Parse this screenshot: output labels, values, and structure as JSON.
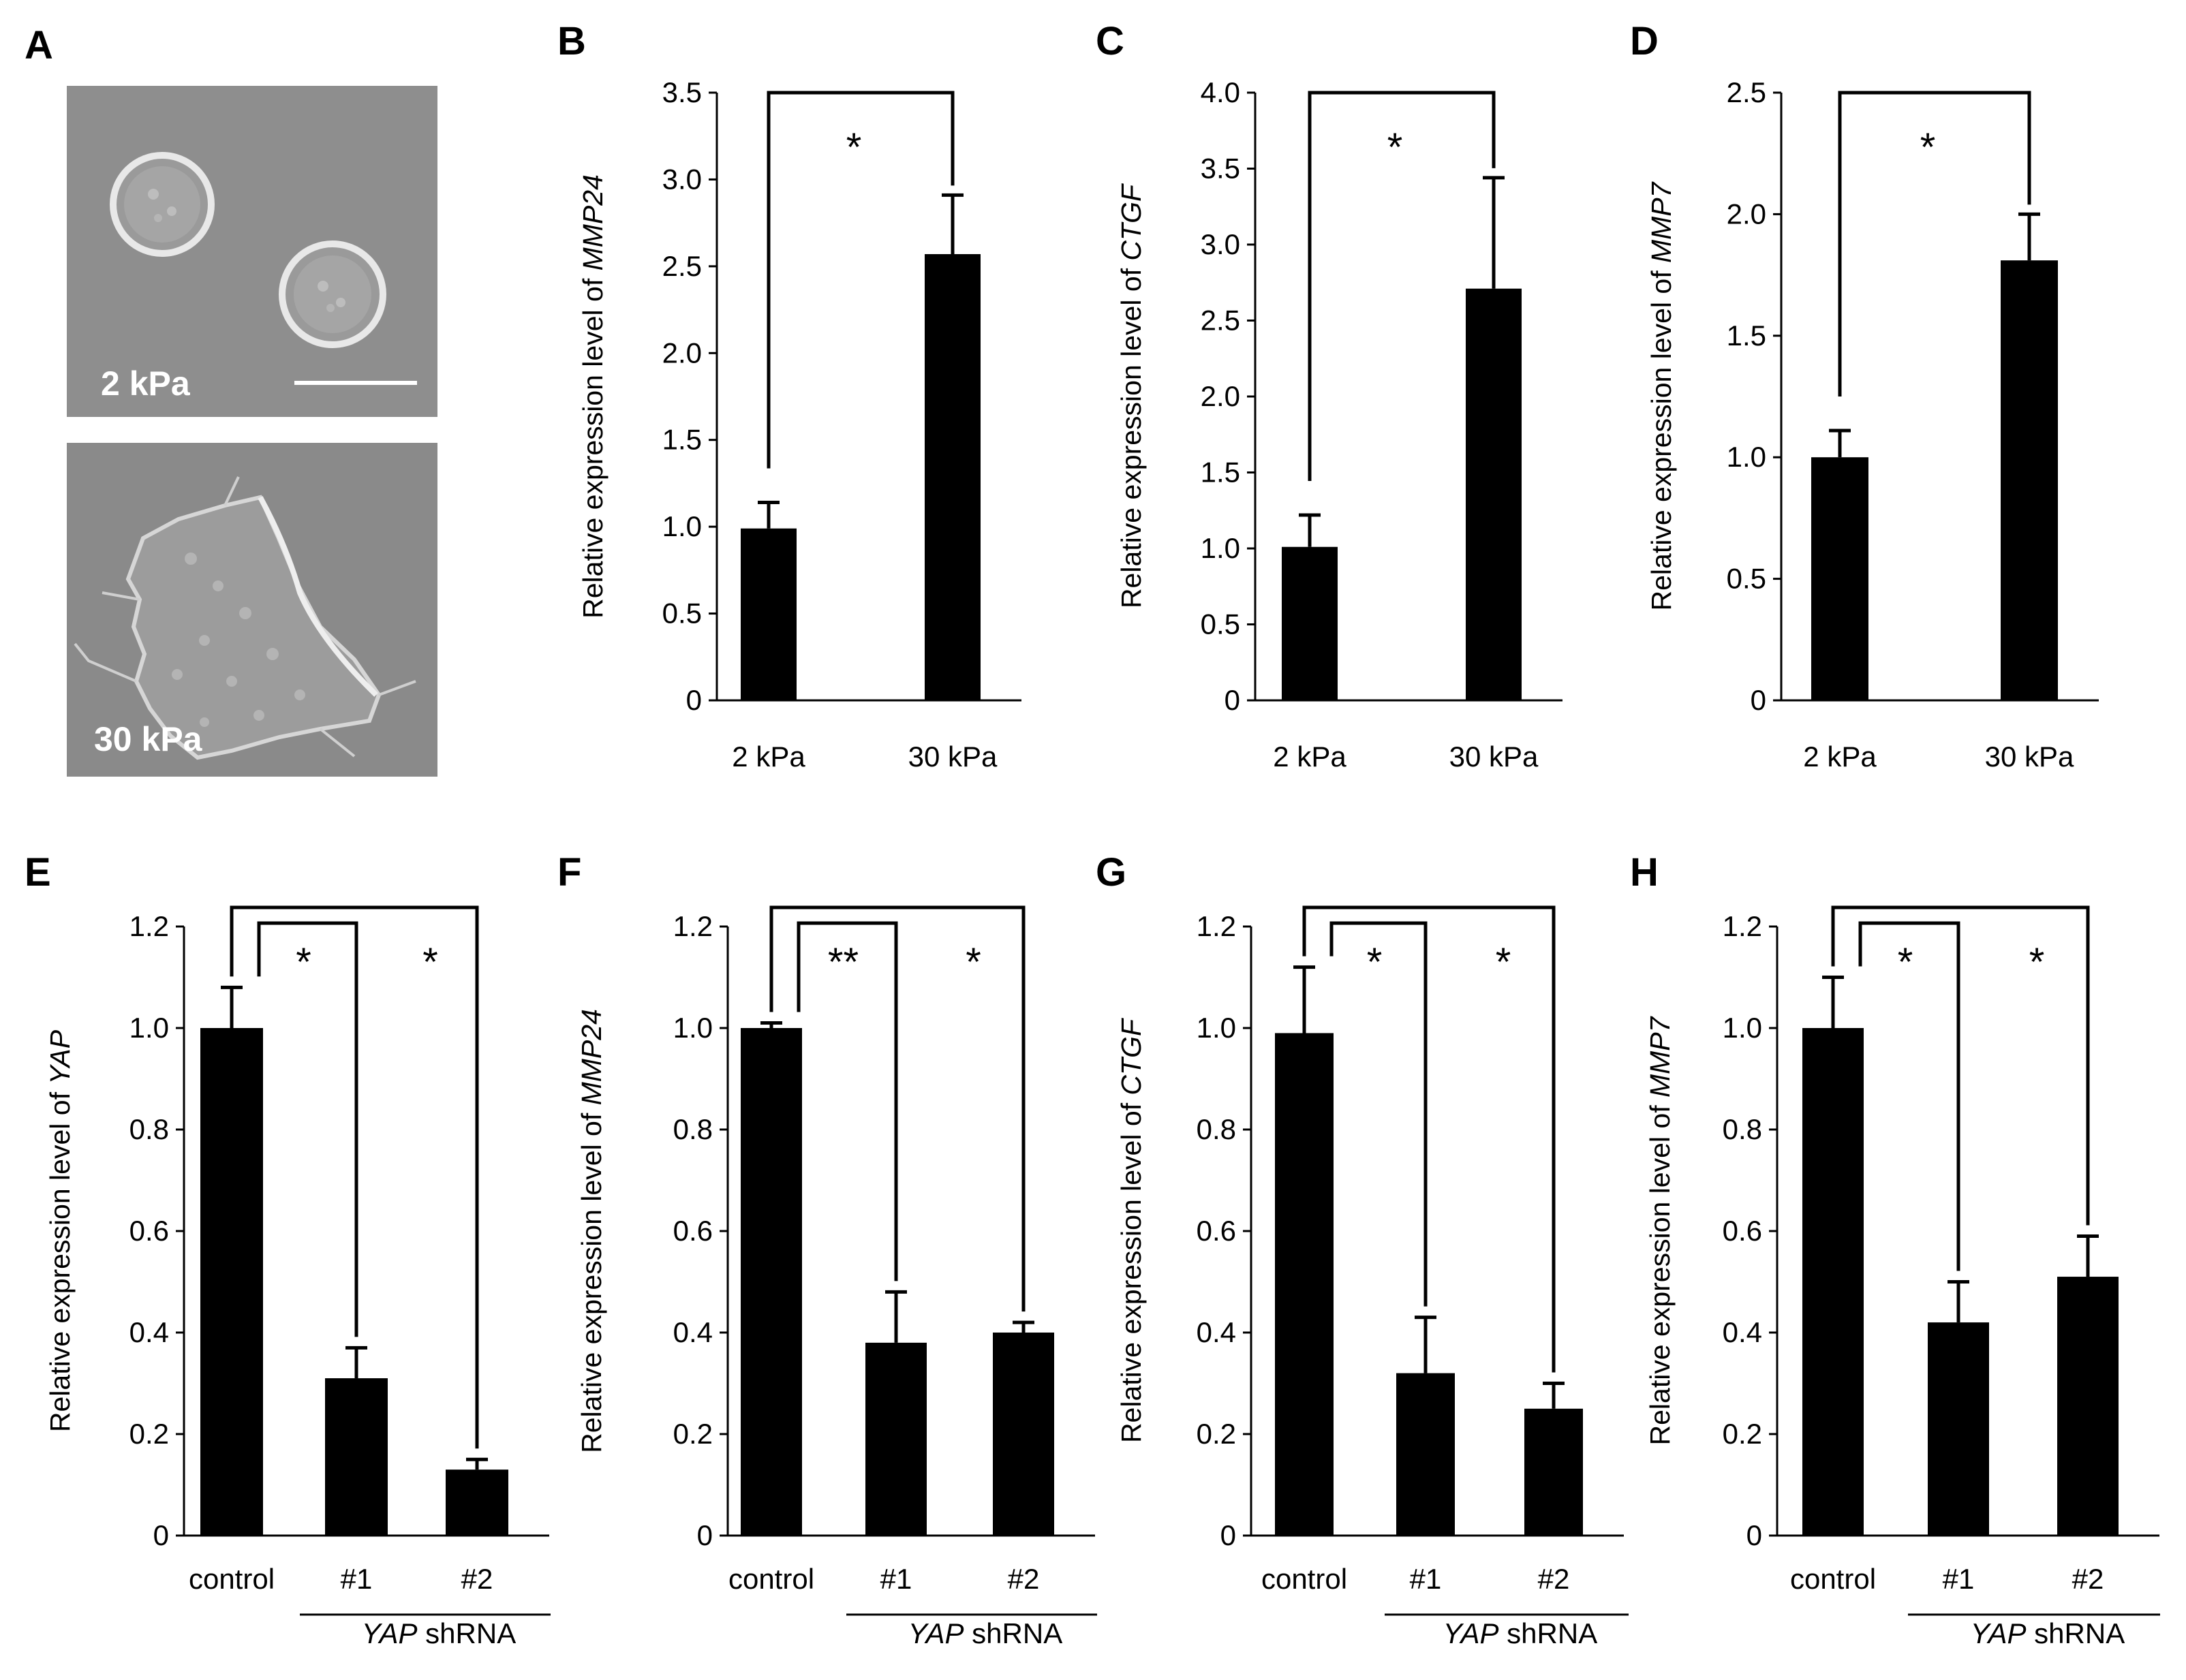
{
  "colors": {
    "bar": "#000000",
    "micro_bg": "#8e8e8e",
    "micro_cell": "#d8d8d8"
  },
  "micrographs": {
    "panel": "A",
    "top_label": "2 kPa",
    "bottom_label": "30 kPa"
  },
  "chart_data": [
    {
      "panel": "B",
      "type": "bar",
      "ylabel_prefix": "Relative expression level of ",
      "gene": "MMP24",
      "categories": [
        "2 kPa",
        "30 kPa"
      ],
      "values": [
        0.99,
        2.57
      ],
      "errors": [
        0.15,
        0.34
      ],
      "ylim": [
        0,
        3.5
      ],
      "yticks": [
        "0",
        "0.5",
        "1.0",
        "1.5",
        "2.0",
        "2.5",
        "3.0",
        "3.5"
      ],
      "group_label": null,
      "significance": [
        {
          "from": 0,
          "to": 1,
          "label": "*"
        }
      ]
    },
    {
      "panel": "C",
      "type": "bar",
      "ylabel_prefix": "Relative expression level of ",
      "gene": "CTGF",
      "categories": [
        "2 kPa",
        "30 kPa"
      ],
      "values": [
        1.01,
        2.71
      ],
      "errors": [
        0.21,
        0.73
      ],
      "ylim": [
        0,
        4.0
      ],
      "yticks": [
        "0",
        "0.5",
        "1.0",
        "1.5",
        "2.0",
        "2.5",
        "3.0",
        "3.5",
        "4.0"
      ],
      "group_label": null,
      "significance": [
        {
          "from": 0,
          "to": 1,
          "label": "*"
        }
      ]
    },
    {
      "panel": "D",
      "type": "bar",
      "ylabel_prefix": "Relative expression level of ",
      "gene": "MMP7",
      "categories": [
        "2 kPa",
        "30 kPa"
      ],
      "values": [
        1.0,
        1.81
      ],
      "errors": [
        0.11,
        0.19
      ],
      "ylim": [
        0,
        2.5
      ],
      "yticks": [
        "0",
        "0.5",
        "1.0",
        "1.5",
        "2.0",
        "2.5"
      ],
      "group_label": null,
      "significance": [
        {
          "from": 0,
          "to": 1,
          "label": "*"
        }
      ]
    },
    {
      "panel": "E",
      "type": "bar",
      "ylabel_prefix": "Relative expression level of ",
      "gene": "YAP",
      "categories": [
        "control",
        "#1",
        "#2"
      ],
      "values": [
        1.0,
        0.31,
        0.13
      ],
      "errors": [
        0.08,
        0.06,
        0.02
      ],
      "ylim": [
        0,
        1.2
      ],
      "yticks": [
        "0",
        "0.2",
        "0.4",
        "0.6",
        "0.8",
        "1.0",
        "1.2"
      ],
      "group_label": {
        "gene": "YAP",
        "text": " shRNA"
      },
      "significance": [
        {
          "from": 0,
          "to": 1,
          "label": "*"
        },
        {
          "from": 0,
          "to": 2,
          "label": "*"
        }
      ]
    },
    {
      "panel": "F",
      "type": "bar",
      "ylabel_prefix": "Relative expression level of  ",
      "gene": "MMP24",
      "categories": [
        "control",
        "#1",
        "#2"
      ],
      "values": [
        1.0,
        0.38,
        0.4
      ],
      "errors": [
        0.01,
        0.1,
        0.02
      ],
      "ylim": [
        0,
        1.2
      ],
      "yticks": [
        "0",
        "0.2",
        "0.4",
        "0.6",
        "0.8",
        "1.0",
        "1.2"
      ],
      "group_label": {
        "gene": "YAP",
        "text": " shRNA"
      },
      "significance": [
        {
          "from": 0,
          "to": 1,
          "label": "**"
        },
        {
          "from": 0,
          "to": 2,
          "label": "*"
        }
      ]
    },
    {
      "panel": "G",
      "type": "bar",
      "ylabel_prefix": "Relative expression level of ",
      "gene": "CTGF",
      "categories": [
        "control",
        "#1",
        "#2"
      ],
      "values": [
        0.99,
        0.32,
        0.25
      ],
      "errors": [
        0.13,
        0.11,
        0.05
      ],
      "ylim": [
        0,
        1.2
      ],
      "yticks": [
        "0",
        "0.2",
        "0.4",
        "0.6",
        "0.8",
        "1.0",
        "1.2"
      ],
      "group_label": {
        "gene": "YAP",
        "text": " shRNA"
      },
      "significance": [
        {
          "from": 0,
          "to": 1,
          "label": "*"
        },
        {
          "from": 0,
          "to": 2,
          "label": "*"
        }
      ]
    },
    {
      "panel": "H",
      "type": "bar",
      "ylabel_prefix": "Relative expression level of ",
      "gene": "MMP7",
      "categories": [
        "control",
        "#1",
        "#2"
      ],
      "values": [
        1.0,
        0.42,
        0.51
      ],
      "errors": [
        0.1,
        0.08,
        0.08
      ],
      "ylim": [
        0,
        1.2
      ],
      "yticks": [
        "0",
        "0.2",
        "0.4",
        "0.6",
        "0.8",
        "1.0",
        "1.2"
      ],
      "group_label": {
        "gene": "YAP",
        "text": " shRNA"
      },
      "significance": [
        {
          "from": 0,
          "to": 1,
          "label": "*"
        },
        {
          "from": 0,
          "to": 2,
          "label": "*"
        }
      ]
    }
  ]
}
